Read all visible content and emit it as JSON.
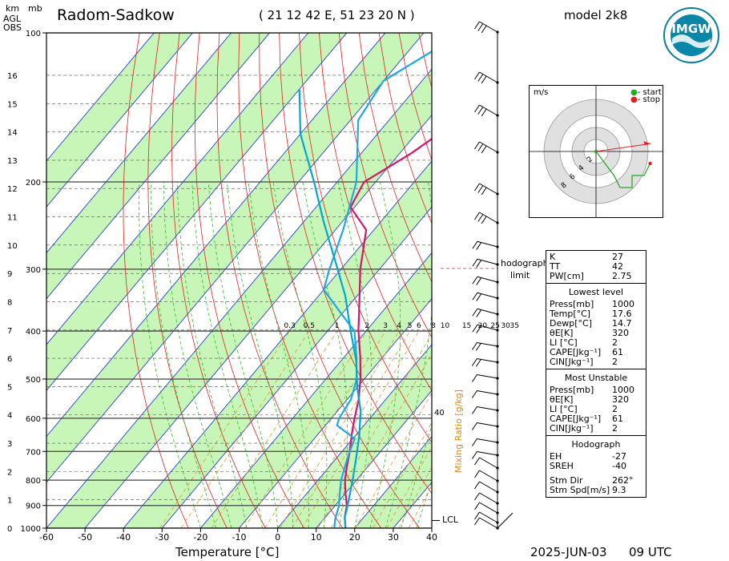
{
  "header": {
    "station": "Radom-Sadkow",
    "coords": "( 21 12 42 E, 51 23 20 N )",
    "model": "model 2k8",
    "date": "2025-JUN-03",
    "time": "09 UTC",
    "logo_text": "IMGW"
  },
  "axes": {
    "km_label": "km",
    "agl_label": "AGL",
    "obs_label": "OBS",
    "mb_label": "mb",
    "x_title": "Temperature [°C]",
    "mixing_title": "Mixing Ratio [g/kg]",
    "lcl_label": "LCL",
    "hodo_limit_1": "hodograph",
    "hodo_limit_2": "limit",
    "forty": "40"
  },
  "hodograph": {
    "unit": "m/s",
    "legend_start": "- start",
    "legend_stop": "- stop",
    "ring_labels": [
      "2",
      "4",
      "6",
      "8"
    ],
    "start_color": "#22aa22",
    "stop_color": "#e02020",
    "points": [
      [
        0,
        0
      ],
      [
        3,
        -4
      ],
      [
        4,
        -6
      ],
      [
        6,
        -6
      ],
      [
        6,
        -4
      ],
      [
        8,
        -4
      ],
      [
        9,
        -2
      ]
    ],
    "storm_motion": [
      9.1,
      1.3
    ]
  },
  "indices": {
    "general": [
      {
        "k": "K",
        "v": "27"
      },
      {
        "k": "TT",
        "v": "42"
      },
      {
        "k": "PW[cm]",
        "v": "2.75"
      }
    ],
    "lowest_title": "Lowest level",
    "lowest": [
      {
        "k": "Press[mb]",
        "v": "1000"
      },
      {
        "k": "Temp[°C]",
        "v": "17.6"
      },
      {
        "k": "Dewp[°C]",
        "v": "14.7"
      },
      {
        "k": "θE[K]",
        "v": "320"
      },
      {
        "k": "LI [°C]",
        "v": "2"
      },
      {
        "k": "CAPE[Jkg⁻¹]",
        "v": "61"
      },
      {
        "k": "CIN[Jkg⁻¹]",
        "v": "2"
      }
    ],
    "unstable_title": "Most Unstable",
    "unstable": [
      {
        "k": "Press[mb]",
        "v": "1000"
      },
      {
        "k": "θE[K]",
        "v": "320"
      },
      {
        "k": "LI [°C]",
        "v": "2"
      },
      {
        "k": "CAPE[Jkg⁻¹]",
        "v": "61"
      },
      {
        "k": "CIN[Jkg⁻¹]",
        "v": "2"
      }
    ],
    "hodo_title": "Hodograph",
    "hodo": [
      {
        "k": "EH",
        "v": "-27"
      },
      {
        "k": "SREH",
        "v": "-40"
      }
    ],
    "storm": [
      {
        "k": "Stm Dir",
        "v": "262°"
      },
      {
        "k": "Stm Spd[m/s]",
        "v": "9.3"
      }
    ]
  },
  "chart_data": {
    "type": "line",
    "title": "Radom-Sadkow",
    "xlabel": "Temperature [°C]",
    "ylabel": "mb",
    "xlim": [
      -60,
      40
    ],
    "ylim": [
      1000,
      100
    ],
    "y_scale": "log",
    "x_ticks": [
      "-60",
      "-50",
      "-40",
      "-30",
      "-20",
      "-10",
      "0",
      "10",
      "20",
      "30",
      "40"
    ],
    "p_ticks": [
      "100",
      "200",
      "300",
      "400",
      "500",
      "600",
      "700",
      "800",
      "900",
      "1000"
    ],
    "km_ticks": [
      "0",
      "1",
      "2",
      "3",
      "4",
      "5",
      "6",
      "7",
      "8",
      "9",
      "10",
      "11",
      "12",
      "13",
      "14",
      "15",
      "16"
    ],
    "mixing_ratio_labels": [
      "0.3",
      "0.5",
      "1",
      "2",
      "3",
      "4",
      "5",
      "6",
      "8",
      "10",
      "15",
      "20",
      "25",
      "30",
      "35"
    ],
    "series": [
      {
        "name": "temperature",
        "color": "#d6166b",
        "points": [
          [
            17.6,
            1000
          ],
          [
            15,
            950
          ],
          [
            13,
            900
          ],
          [
            10,
            850
          ],
          [
            7,
            800
          ],
          [
            4.5,
            750
          ],
          [
            2,
            700
          ],
          [
            -1,
            650
          ],
          [
            -4,
            600
          ],
          [
            -7,
            550
          ],
          [
            -11,
            500
          ],
          [
            -16,
            450
          ],
          [
            -22,
            400
          ],
          [
            -28,
            350
          ],
          [
            -35,
            300
          ],
          [
            -42,
            250
          ],
          [
            -51,
            225
          ],
          [
            -53,
            200
          ],
          [
            -47,
            175
          ],
          [
            -42,
            150
          ],
          [
            -40,
            125
          ],
          [
            -37,
            100
          ]
        ]
      },
      {
        "name": "dew point",
        "color": "#1fa9e0",
        "points": [
          [
            14.7,
            1000
          ],
          [
            13,
            960
          ],
          [
            11,
            900
          ],
          [
            9,
            860
          ],
          [
            6,
            800
          ],
          [
            4,
            750
          ],
          [
            2,
            700
          ],
          [
            0.5,
            660
          ],
          [
            -7,
            620
          ],
          [
            -8,
            600
          ],
          [
            -9,
            550
          ],
          [
            -12,
            500
          ],
          [
            -17,
            450
          ],
          [
            -23,
            400
          ],
          [
            -30,
            370
          ],
          [
            -40,
            330
          ],
          [
            -43,
            300
          ],
          [
            -48,
            250
          ],
          [
            -55,
            200
          ],
          [
            -68,
            150
          ],
          [
            -70,
            125
          ],
          [
            -60,
            100
          ]
        ]
      },
      {
        "name": "parcel",
        "color": "#00a8d0",
        "points": [
          [
            17.6,
            1000
          ],
          [
            15,
            950
          ],
          [
            14,
            920
          ],
          [
            12,
            870
          ],
          [
            9,
            800
          ],
          [
            5,
            720
          ],
          [
            1,
            650
          ],
          [
            -4,
            580
          ],
          [
            -10,
            520
          ],
          [
            -16,
            460
          ],
          [
            -24,
            400
          ],
          [
            -33,
            340
          ],
          [
            -43,
            290
          ],
          [
            -55,
            240
          ],
          [
            -66,
            200
          ],
          [
            -80,
            160
          ],
          [
            -90,
            130
          ]
        ]
      }
    ]
  }
}
